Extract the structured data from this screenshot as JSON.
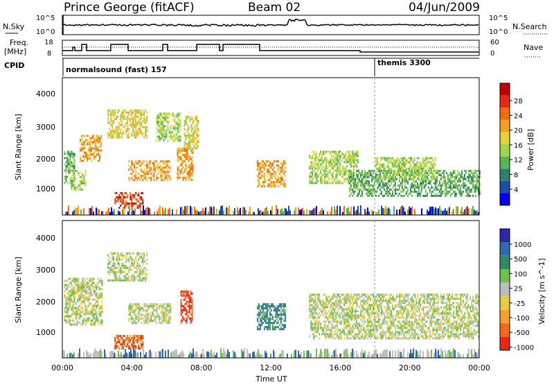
{
  "header": {
    "station": "Prince George (fitACF)",
    "beam": "Beam 02",
    "date": "04/Jun/2009"
  },
  "summary_panels": {
    "nsky_label": "N.Sky",
    "nsearch_label": "N.Search",
    "freq_label_line1": "Freq.",
    "freq_label_line2": "[MHz]",
    "nave_label": "Nave",
    "cpid_label": "CPID",
    "nsky_ticks": [
      "10^5",
      "10^0"
    ],
    "freq_ticks": [
      "18",
      "8"
    ],
    "nave_ticks": [
      "60",
      "0"
    ],
    "cpid_segments": [
      {
        "label": "normalsound (fast) 157",
        "start_hour": 0
      },
      {
        "label": "themis 3300",
        "start_hour": 18
      }
    ]
  },
  "x_axis": {
    "label": "Time UT",
    "ticks": [
      "00:00",
      "04:00",
      "08:00",
      "12:00",
      "16:00",
      "20:00",
      "00:00"
    ]
  },
  "power_panel": {
    "ylabel": "Slant Range [km]",
    "yticks": [
      "4000",
      "3000",
      "2000",
      "1000"
    ],
    "colorbar_label": "Power [dB]",
    "colorbar_ticks": [
      "28",
      "24",
      "20",
      "16",
      "12",
      "8",
      "4"
    ],
    "colors": [
      "#0000ee",
      "#1e4ea8",
      "#2f7f6a",
      "#59b457",
      "#9bd84a",
      "#e7d33b",
      "#f5a020",
      "#f26a12",
      "#e52a14",
      "#c00000"
    ]
  },
  "velocity_panel": {
    "ylabel": "Slant Range [km]",
    "yticks": [
      "4000",
      "3000",
      "2000",
      "1000"
    ],
    "colorbar_label": "Velocity [m s^-1]",
    "colorbar_ticks": [
      "1000",
      "500",
      "100",
      "25",
      "-25",
      "-100",
      "-500",
      "-1000"
    ],
    "colors": [
      "#2a2aa8",
      "#2d6ab0",
      "#2f8a6a",
      "#6cc24a",
      "#bebebe",
      "#e8cf3a",
      "#f3a22c",
      "#ef6b1a",
      "#e52a14"
    ]
  },
  "chart_data": {
    "type": "heatmap",
    "x_range_hours": [
      0,
      24
    ],
    "y_range_km": [
      180,
      4500
    ],
    "power_regions": [
      {
        "t0": 0.1,
        "t1": 0.7,
        "r0": 1200,
        "r1": 2200,
        "level": 3
      },
      {
        "t0": 0.5,
        "t1": 1.3,
        "r0": 1000,
        "r1": 1600,
        "level": 4
      },
      {
        "t0": 1.0,
        "t1": 2.2,
        "r0": 1900,
        "r1": 2700,
        "level": 6
      },
      {
        "t0": 2.6,
        "t1": 4.9,
        "r0": 2600,
        "r1": 3500,
        "level": 5
      },
      {
        "t0": 3.0,
        "t1": 4.6,
        "r0": 400,
        "r1": 900,
        "level": 8
      },
      {
        "t0": 3.8,
        "t1": 6.2,
        "r0": 1300,
        "r1": 1900,
        "level": 6
      },
      {
        "t0": 5.4,
        "t1": 6.8,
        "r0": 2500,
        "r1": 3400,
        "level": 4
      },
      {
        "t0": 6.6,
        "t1": 7.5,
        "r0": 1300,
        "r1": 2300,
        "level": 6
      },
      {
        "t0": 7.0,
        "t1": 7.8,
        "r0": 2300,
        "r1": 3300,
        "level": 5
      },
      {
        "t0": 11.2,
        "t1": 12.8,
        "r0": 1100,
        "r1": 1900,
        "level": 6
      },
      {
        "t0": 14.2,
        "t1": 17.0,
        "r0": 1200,
        "r1": 2200,
        "level": 4
      },
      {
        "t0": 16.5,
        "t1": 24.0,
        "r0": 800,
        "r1": 1600,
        "level": 3
      },
      {
        "t0": 18.0,
        "t1": 21.5,
        "r0": 1300,
        "r1": 2000,
        "level": 4
      }
    ],
    "velocity_regions": [
      {
        "t0": 0.1,
        "t1": 2.3,
        "r0": 1200,
        "r1": 2700,
        "level": 4
      },
      {
        "t0": 2.6,
        "t1": 4.9,
        "r0": 2600,
        "r1": 3500,
        "level": 4
      },
      {
        "t0": 3.0,
        "t1": 4.6,
        "r0": 500,
        "r1": 900,
        "level": 7
      },
      {
        "t0": 3.8,
        "t1": 6.2,
        "r0": 1300,
        "r1": 1900,
        "level": 4
      },
      {
        "t0": 6.8,
        "t1": 7.5,
        "r0": 1300,
        "r1": 2300,
        "level": 8
      },
      {
        "t0": 11.2,
        "t1": 12.8,
        "r0": 1100,
        "r1": 1900,
        "level": 2
      },
      {
        "t0": 14.2,
        "t1": 24.0,
        "r0": 800,
        "r1": 2200,
        "level": 4
      }
    ]
  }
}
